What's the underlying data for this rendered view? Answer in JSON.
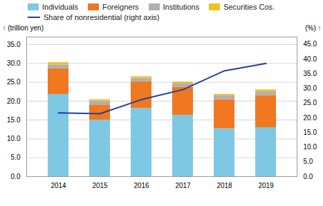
{
  "chart_data": {
    "type": "bar",
    "stacked": true,
    "categories": [
      "2014",
      "2015",
      "2016",
      "2017",
      "2018",
      "2019"
    ],
    "series": [
      {
        "name": "Individuals",
        "type": "bar",
        "color": "#7EC8E3",
        "values": [
          21.8,
          15.0,
          18.1,
          16.3,
          12.7,
          13.0
        ]
      },
      {
        "name": "Foreigners",
        "type": "bar",
        "color": "#F07820",
        "values": [
          6.8,
          4.0,
          7.0,
          7.4,
          7.7,
          8.5
        ]
      },
      {
        "name": "Institutions",
        "type": "bar",
        "color": "#B0B0B0",
        "values": [
          1.0,
          1.0,
          1.0,
          1.0,
          1.0,
          1.0
        ]
      },
      {
        "name": "Securities Cos.",
        "type": "bar",
        "color": "#F0C020",
        "values": [
          0.6,
          0.4,
          0.4,
          0.4,
          0.4,
          0.5
        ]
      },
      {
        "name": "Share of nonresidential (right axis)",
        "type": "line",
        "axis": "y2",
        "color": "#1F3F9F",
        "values": [
          21.7,
          21.4,
          26.2,
          29.6,
          36.0,
          38.5
        ]
      }
    ],
    "ylabel": "(trillion yen)",
    "y2label": "(%)",
    "ylim": [
      0,
      37.0
    ],
    "yticks": [
      {
        "value": 0,
        "label": "0.0"
      },
      {
        "value": 5,
        "label": "5.0"
      },
      {
        "value": 10,
        "label": "10.0"
      },
      {
        "value": 15,
        "label": "15.0"
      },
      {
        "value": 20,
        "label": "20.0"
      },
      {
        "value": 25,
        "label": "25.0"
      },
      {
        "value": 30,
        "label": "30.0"
      },
      {
        "value": 35,
        "label": "35.0"
      }
    ],
    "y2lim": [
      0,
      47.5
    ],
    "y2ticks": [
      {
        "value": 0,
        "label": "0.0"
      },
      {
        "value": 5,
        "label": "5.0"
      },
      {
        "value": 10,
        "label": "10.0"
      },
      {
        "value": 15,
        "label": "15.0"
      },
      {
        "value": 20,
        "label": "20.0"
      },
      {
        "value": 25,
        "label": "25.0"
      },
      {
        "value": 30,
        "label": "30.0"
      },
      {
        "value": 35,
        "label": "35.0"
      },
      {
        "value": 40,
        "label": "40.0"
      },
      {
        "value": 45,
        "label": "45.0"
      }
    ],
    "grid": true,
    "legend": "upper left"
  }
}
